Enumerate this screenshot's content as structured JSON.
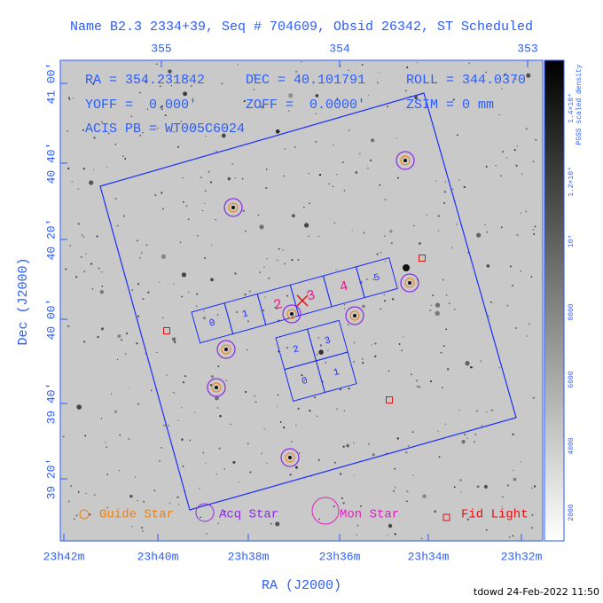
{
  "title": "Name B2.3 2334+39, Seq # 704609, Obsid 26342, ST Scheduled",
  "axes": {
    "top_ticks": [
      "355",
      "354",
      "353"
    ],
    "left_ticks": [
      "41 00'",
      "40 40'",
      "40 20'",
      "40 00'",
      "39 40'",
      "39 20'"
    ],
    "bottom_ticks": [
      "23h42m",
      "23h40m",
      "23h38m",
      "23h36m",
      "23h34m",
      "23h32m"
    ],
    "x_label": "RA (J2000)",
    "y_label": "Dec (J2000)"
  },
  "info": [
    "RA = 354.231842",
    "DEC = 40.101791",
    "ROLL = 344.0370",
    "YOFF =  0.000'",
    "ZOFF =  0.0000'",
    "ZSIM = 0 mm",
    "ACIS PB = WT005C6024"
  ],
  "colorbar": {
    "ticks": [
      "1.4×10⁴",
      "1.2×10⁴",
      "10⁴",
      "8000",
      "6000",
      "4000",
      "2000"
    ],
    "label": "PGSS scaled density"
  },
  "chips": {
    "s_array": [
      "0",
      "1",
      "2",
      "3",
      "4",
      "5"
    ],
    "i_array": [
      "2",
      "3",
      "0",
      "1"
    ]
  },
  "legend": [
    "Guide Star",
    "Acq Star",
    "Mon Star",
    "Fid Light"
  ],
  "footer": "tdowd 24-Feb-2022 11:50"
}
